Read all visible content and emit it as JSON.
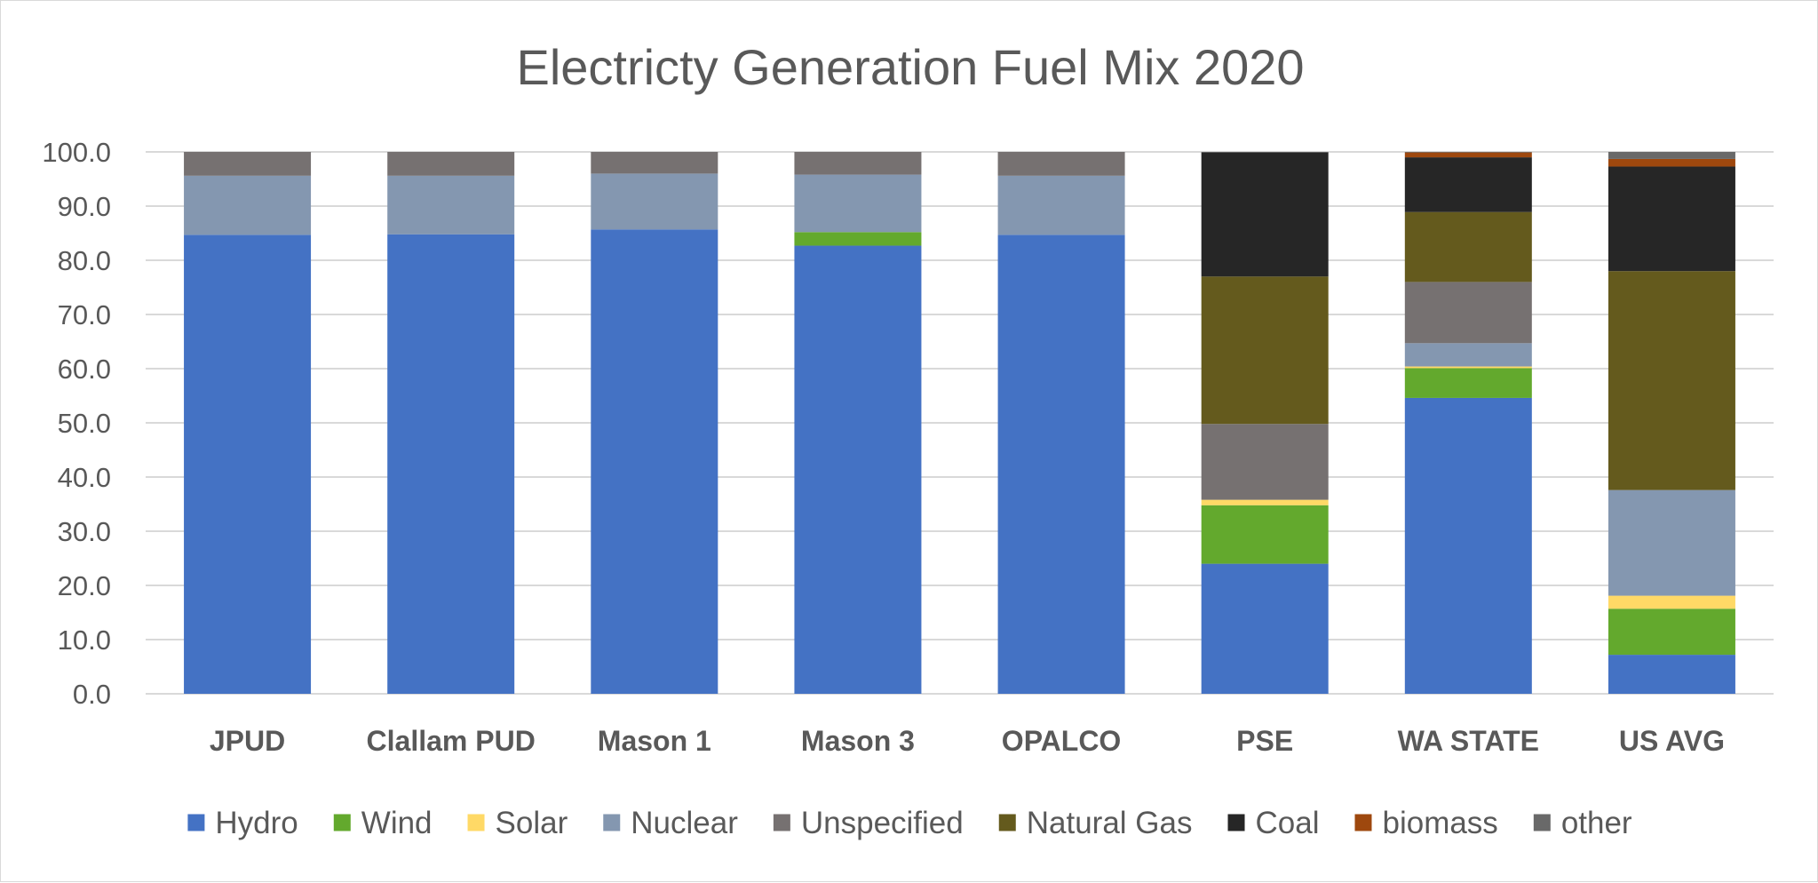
{
  "chart_data": {
    "type": "bar",
    "stacked": true,
    "title": "Electricty Generation Fuel Mix 2020",
    "xlabel": "",
    "ylabel": "",
    "ylim": [
      0,
      100
    ],
    "yticks": [
      "0.0",
      "10.0",
      "20.0",
      "30.0",
      "40.0",
      "50.0",
      "60.0",
      "70.0",
      "80.0",
      "90.0",
      "100.0"
    ],
    "grid": true,
    "legend_position": "bottom",
    "categories": [
      "JPUD",
      "Clallam PUD",
      "Mason 1",
      "Mason 3",
      "OPALCO",
      "PSE",
      "WA STATE",
      "US AVG"
    ],
    "series": [
      {
        "name": "Hydro",
        "color": "#4472C4",
        "values": [
          84.7,
          84.8,
          85.7,
          82.7,
          84.7,
          24.0,
          54.6,
          7.2
        ]
      },
      {
        "name": "Wind",
        "color": "#63A92D",
        "values": [
          0,
          0,
          0,
          2.5,
          0,
          10.8,
          5.5,
          8.5
        ]
      },
      {
        "name": "Solar",
        "color": "#FFD966",
        "values": [
          0,
          0,
          0,
          0,
          0,
          1.0,
          0.3,
          2.4
        ]
      },
      {
        "name": "Nuclear",
        "color": "#8497B0",
        "values": [
          10.9,
          10.8,
          10.3,
          10.6,
          10.9,
          0,
          4.3,
          19.5
        ]
      },
      {
        "name": "Unspecified",
        "color": "#767171",
        "values": [
          4.4,
          4.4,
          4.0,
          4.2,
          4.4,
          14.0,
          11.3,
          0
        ]
      },
      {
        "name": "Natural Gas",
        "color": "#645A1D",
        "values": [
          0,
          0,
          0,
          0,
          0,
          27.2,
          12.9,
          40.4
        ]
      },
      {
        "name": "Coal",
        "color": "#262626",
        "values": [
          0,
          0,
          0,
          0,
          0,
          22.9,
          10.1,
          19.3
        ]
      },
      {
        "name": "biomass",
        "color": "#9E480E",
        "values": [
          0,
          0,
          0,
          0,
          0,
          0,
          0.9,
          1.4
        ]
      },
      {
        "name": "other",
        "color": "#696969",
        "values": [
          0,
          0,
          0,
          0,
          0,
          0.1,
          0.1,
          1.3
        ]
      }
    ]
  }
}
